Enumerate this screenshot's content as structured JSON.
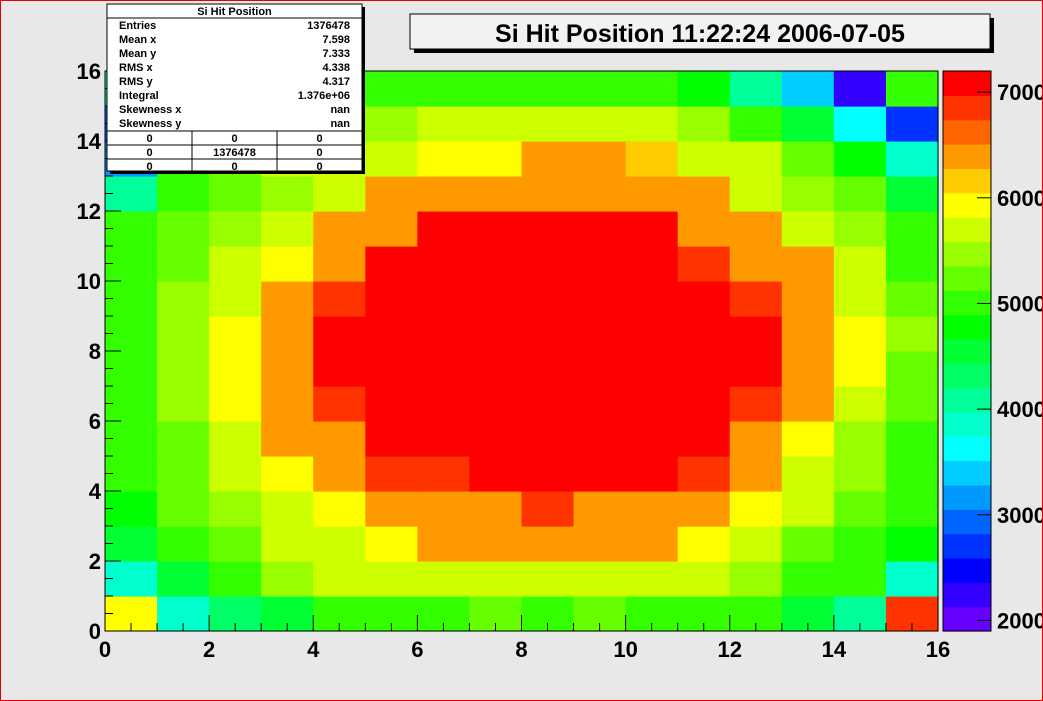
{
  "chart_data": {
    "type": "heatmap",
    "title": "Si Hit Position  11:22:24  2006-07-05",
    "xlim": [
      0,
      16
    ],
    "ylim": [
      0,
      16
    ],
    "x_ticks": [
      "0",
      "2",
      "4",
      "6",
      "8",
      "10",
      "12",
      "14",
      "16"
    ],
    "y_ticks": [
      "0",
      "2",
      "4",
      "6",
      "8",
      "10",
      "12",
      "14",
      "16"
    ],
    "z_ticks": [
      "2000",
      "3000",
      "4000",
      "5000",
      "6000",
      "7000"
    ],
    "zlim": [
      1900,
      7200
    ],
    "z_levels": [
      "#6600ff",
      "#3300ff",
      "#0000ff",
      "#0033ff",
      "#0066ff",
      "#0099ff",
      "#00ccff",
      "#00ffff",
      "#00ffcc",
      "#00ff99",
      "#00ff66",
      "#00ff33",
      "#00ff00",
      "#33ff00",
      "#66ff00",
      "#99ff00",
      "#ccff00",
      "#ffff00",
      "#ffcc00",
      "#ff9900",
      "#ff6600",
      "#ff3300",
      "#ff0000"
    ],
    "grid": false,
    "values": [
      [
        6000,
        3800,
        4400,
        4600,
        5100,
        5100,
        5000,
        5300,
        5100,
        5300,
        5100,
        5100,
        5000,
        4600,
        4000,
        6900
      ],
      [
        3900,
        4600,
        4900,
        5400,
        5600,
        5800,
        5800,
        5800,
        5800,
        5800,
        5800,
        5600,
        5400,
        5000,
        5100,
        3900
      ],
      [
        4500,
        5000,
        5300,
        5600,
        5800,
        6000,
        6300,
        6300,
        6300,
        6300,
        6300,
        6000,
        5600,
        5300,
        5000,
        4800
      ],
      [
        4800,
        5200,
        5500,
        5800,
        6000,
        6300,
        6500,
        6500,
        6800,
        6500,
        6500,
        6300,
        6000,
        5600,
        5200,
        4900
      ],
      [
        4900,
        5300,
        5600,
        6000,
        6300,
        6800,
        6800,
        7000,
        7000,
        7000,
        7000,
        6800,
        6300,
        5800,
        5400,
        5000
      ],
      [
        4900,
        5300,
        5700,
        6300,
        6500,
        7000,
        7000,
        7000,
        7000,
        7000,
        7000,
        7000,
        6500,
        6000,
        5500,
        5100
      ],
      [
        5000,
        5400,
        5900,
        6500,
        6800,
        7000,
        7000,
        7000,
        7000,
        7000,
        7000,
        7000,
        6800,
        6300,
        5700,
        5200
      ],
      [
        5000,
        5500,
        5900,
        6500,
        7000,
        7000,
        7000,
        7000,
        7000,
        7000,
        7000,
        7000,
        7000,
        6300,
        5900,
        5300
      ],
      [
        5000,
        5400,
        5900,
        6300,
        7000,
        7000,
        7000,
        7000,
        7000,
        7000,
        7000,
        7000,
        7000,
        6500,
        6000,
        5400
      ],
      [
        5000,
        5400,
        5700,
        6300,
        6800,
        7000,
        7000,
        7000,
        7000,
        7000,
        7000,
        7000,
        6800,
        6300,
        5800,
        5300
      ],
      [
        5000,
        5300,
        5700,
        6000,
        6500,
        7000,
        7000,
        7000,
        7000,
        7000,
        7000,
        6800,
        6500,
        6300,
        5700,
        5100
      ],
      [
        4900,
        5200,
        5500,
        5800,
        6300,
        6500,
        7000,
        7000,
        7000,
        7000,
        7000,
        6500,
        6300,
        5800,
        5400,
        5000
      ],
      [
        4000,
        5000,
        5300,
        5500,
        5800,
        6300,
        6300,
        6300,
        6500,
        6300,
        6300,
        6300,
        5800,
        5400,
        5200,
        4600
      ],
      [
        3100,
        5000,
        5300,
        5600,
        5800,
        5800,
        5900,
        6000,
        6300,
        6300,
        6100,
        5800,
        5600,
        5300,
        4700,
        3800
      ],
      [
        3000,
        5100,
        5300,
        5400,
        5500,
        5500,
        5600,
        5600,
        5800,
        5600,
        5600,
        5400,
        5100,
        4600,
        3700,
        2600
      ],
      [
        4000,
        4800,
        5000,
        5100,
        5100,
        5100,
        5100,
        5000,
        5000,
        5000,
        5100,
        4800,
        4200,
        3300,
        2300,
        5000
      ]
    ],
    "stats": {
      "title": "Si Hit Position",
      "rows": [
        {
          "label": "Entries",
          "value": "1376478"
        },
        {
          "label": "Mean x",
          "value": "7.598"
        },
        {
          "label": "Mean y",
          "value": "7.333"
        },
        {
          "label": "RMS x",
          "value": "4.338"
        },
        {
          "label": "RMS y",
          "value": "4.317"
        },
        {
          "label": "Integral",
          "value": "1.376e+06"
        },
        {
          "label": "Skewness x",
          "value": "nan"
        },
        {
          "label": "Skewness y",
          "value": "nan"
        }
      ],
      "grid": [
        [
          "0",
          "0",
          "0"
        ],
        [
          "0",
          "1376478",
          "0"
        ],
        [
          "0",
          "0",
          "0"
        ]
      ]
    }
  }
}
